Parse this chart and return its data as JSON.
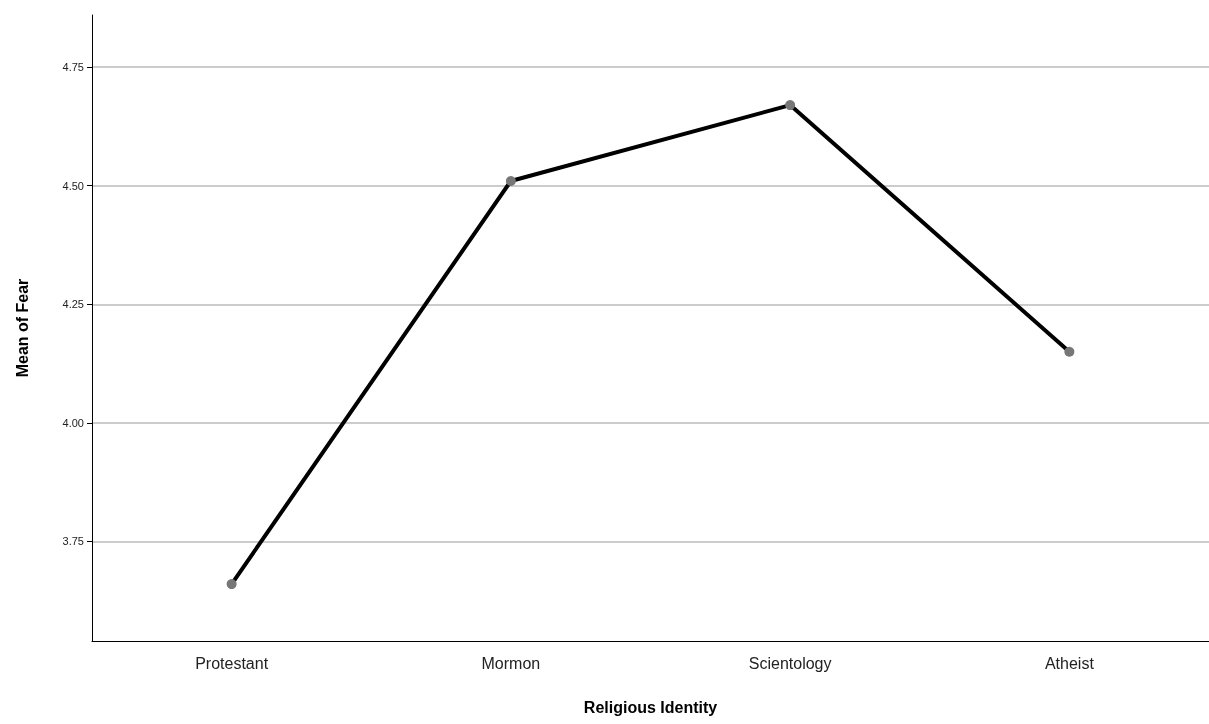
{
  "chart_data": {
    "type": "line",
    "xlabel": "Religious Identity",
    "ylabel": "Mean of Fear",
    "categories": [
      "Protestant",
      "Mormon",
      "Scientology",
      "Atheist"
    ],
    "series": [
      {
        "color": "#000000",
        "values": [
          3.66,
          4.51,
          4.67,
          4.15
        ]
      }
    ],
    "ylim": [
      3.54,
      4.86
    ],
    "yticks": [
      3.75,
      {
        "value": 4,
        "label": "4.00"
      },
      4.25,
      {
        "value": 4.5,
        "label": "4.50"
      },
      4.75
    ],
    "grid": "y",
    "marker": "circle",
    "line_style": "solid"
  }
}
